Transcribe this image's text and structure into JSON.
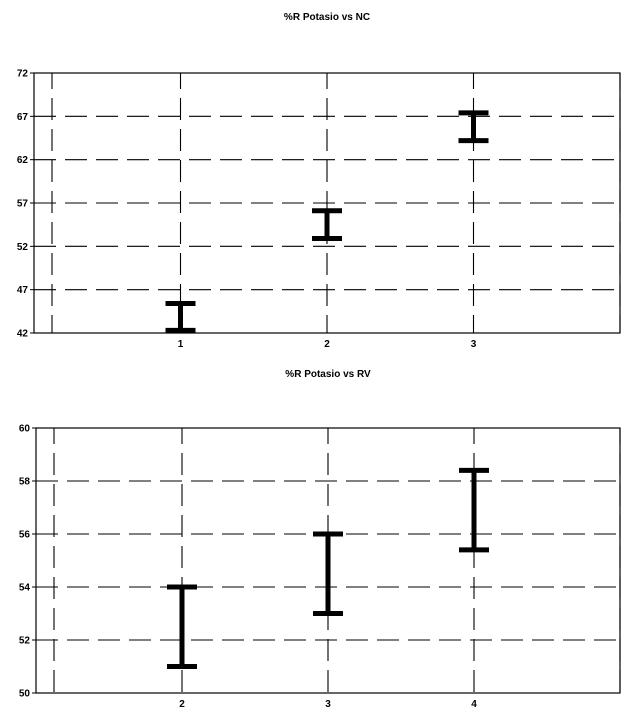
{
  "chart_data": [
    {
      "type": "errorbar",
      "title": "%R Potasio vs NC",
      "xlabel": "",
      "ylabel": "",
      "xlim": [
        0,
        4
      ],
      "ylim": [
        42,
        72
      ],
      "y_ticks": [
        42,
        47,
        52,
        57,
        62,
        67,
        72
      ],
      "x_ticks": [
        1,
        2,
        3
      ],
      "vertical_grid_x": [
        0,
        1,
        2,
        3,
        4
      ],
      "grid": true,
      "points": [
        {
          "x": 1,
          "low": 42.3,
          "high": 45.4
        },
        {
          "x": 2,
          "low": 52.9,
          "high": 56.1
        },
        {
          "x": 3,
          "low": 64.2,
          "high": 67.4
        }
      ]
    },
    {
      "type": "errorbar",
      "title": "%R Potasio vs RV",
      "xlabel": "",
      "ylabel": "",
      "xlim": [
        1,
        5
      ],
      "ylim": [
        50,
        60
      ],
      "y_ticks": [
        50,
        52,
        54,
        56,
        58,
        60
      ],
      "x_ticks": [
        2,
        3,
        4
      ],
      "vertical_grid_x": [
        1,
        2,
        3,
        4,
        5
      ],
      "grid": true,
      "points": [
        {
          "x": 2,
          "low": 51.0,
          "high": 54.0
        },
        {
          "x": 3,
          "low": 53.0,
          "high": 56.0
        },
        {
          "x": 4,
          "low": 55.4,
          "high": 58.4
        }
      ]
    }
  ]
}
